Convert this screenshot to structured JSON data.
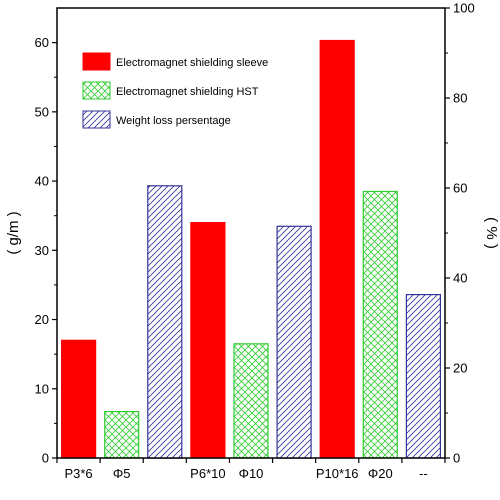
{
  "chart_data": {
    "type": "bar",
    "categories": [
      "P3*6",
      "Φ5",
      "",
      "P6*10",
      "Φ10",
      "",
      "P10*16",
      "Φ20",
      "--"
    ],
    "series": [
      {
        "name": "Electromagnet shielding sleeve",
        "axis": "left",
        "color": "#ff0000",
        "pattern": "solid",
        "points": [
          {
            "index": 0,
            "value": 17
          },
          {
            "index": 3,
            "value": 34
          },
          {
            "index": 6,
            "value": 60.3
          }
        ]
      },
      {
        "name": "Electromagnet shielding HST",
        "axis": "left",
        "color": "#33cc33",
        "pattern": "crosshatch",
        "points": [
          {
            "index": 1,
            "value": 6.7
          },
          {
            "index": 4,
            "value": 16.5
          },
          {
            "index": 7,
            "value": 38.5
          }
        ]
      },
      {
        "name": "Weight loss persentage",
        "axis": "right",
        "color": "#333399",
        "pattern": "diagonal",
        "points": [
          {
            "index": 2,
            "value": 60.5
          },
          {
            "index": 5,
            "value": 51.5
          },
          {
            "index": 8,
            "value": 36.3
          }
        ]
      }
    ],
    "ylabel": "( g/m )",
    "y2label": "( % )",
    "ylim": [
      0,
      65
    ],
    "y2lim": [
      0,
      100
    ],
    "yticks": [
      "0",
      "10",
      "20",
      "30",
      "40",
      "50",
      "60"
    ],
    "y2ticks": [
      "0",
      "20",
      "40",
      "60",
      "80",
      "100"
    ],
    "grid": false,
    "legend_position": "top-left"
  }
}
